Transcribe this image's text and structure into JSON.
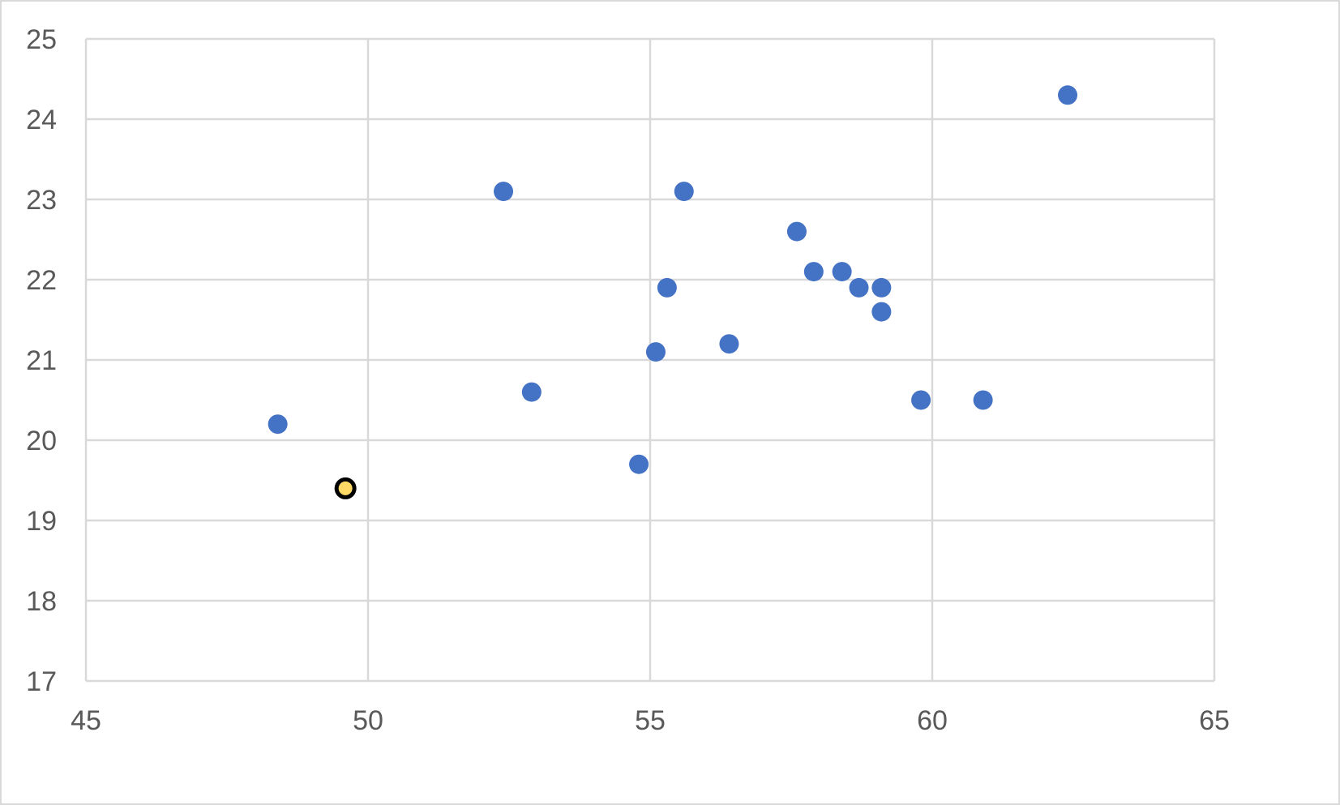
{
  "chart_data": {
    "type": "scatter",
    "title": "",
    "xlabel": "",
    "ylabel": "",
    "xlim": [
      45,
      65
    ],
    "ylim": [
      17,
      25
    ],
    "xticks": [
      "45",
      "50",
      "55",
      "60",
      "65"
    ],
    "yticks": [
      "17",
      "18",
      "19",
      "20",
      "21",
      "22",
      "23",
      "24",
      "25"
    ],
    "grid": true,
    "legend": "none",
    "series": [
      {
        "color": "#4472c4",
        "points": [
          {
            "x": 48.4,
            "y": 20.2
          },
          {
            "x": 52.4,
            "y": 23.1
          },
          {
            "x": 52.9,
            "y": 20.6
          },
          {
            "x": 54.8,
            "y": 19.7
          },
          {
            "x": 55.1,
            "y": 21.1
          },
          {
            "x": 55.3,
            "y": 21.9
          },
          {
            "x": 55.6,
            "y": 23.1
          },
          {
            "x": 56.4,
            "y": 21.2
          },
          {
            "x": 57.6,
            "y": 22.6
          },
          {
            "x": 57.9,
            "y": 22.1
          },
          {
            "x": 58.4,
            "y": 22.1
          },
          {
            "x": 58.7,
            "y": 21.9
          },
          {
            "x": 59.1,
            "y": 21.9
          },
          {
            "x": 59.1,
            "y": 21.6
          },
          {
            "x": 59.8,
            "y": 20.5
          },
          {
            "x": 60.9,
            "y": 20.5
          },
          {
            "x": 62.4,
            "y": 24.3
          }
        ]
      },
      {
        "color": "#ffd966",
        "border_color": "#000000",
        "highlighted": true,
        "points": [
          {
            "x": 49.6,
            "y": 19.4
          }
        ]
      }
    ]
  }
}
